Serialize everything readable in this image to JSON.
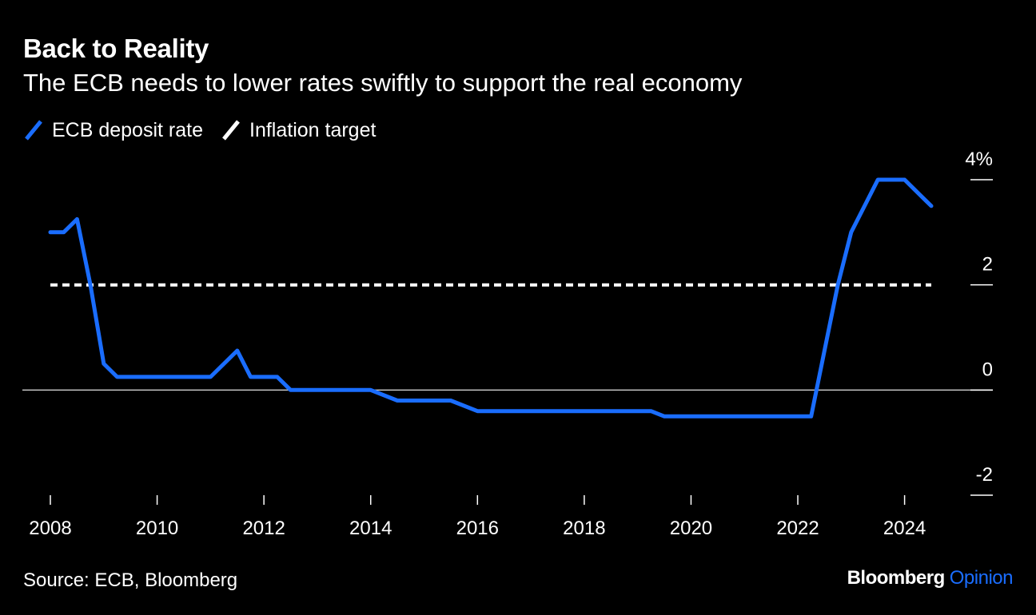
{
  "header": {
    "title": "Back to Reality",
    "subtitle": "The ECB needs to lower rates swiftly to support the real economy"
  },
  "legend": [
    {
      "label": "ECB deposit rate",
      "color": "#1a6dff",
      "icon": "blue-slash-icon"
    },
    {
      "label": "Inflation target",
      "color": "#ffffff",
      "icon": "white-slash-icon"
    }
  ],
  "footer": {
    "source": "Source: ECB, Bloomberg",
    "brand_main": "Bloomberg",
    "brand_sub": "Opinion",
    "brand_sub_color": "#1a6dff"
  },
  "chart_data": {
    "type": "line",
    "x_unit": "year",
    "xlim": [
      2008,
      2024.5
    ],
    "ylim": [
      -2,
      4
    ],
    "x_ticks": [
      2008,
      2010,
      2012,
      2014,
      2016,
      2018,
      2020,
      2022,
      2024
    ],
    "x_tick_labels": [
      "2008",
      "2010",
      "2012",
      "2014",
      "2016",
      "2018",
      "2020",
      "2022",
      "2024"
    ],
    "y_ticks": [
      4,
      2,
      0,
      -2
    ],
    "y_tick_labels": [
      "4%",
      "2",
      "0",
      "-2"
    ],
    "zero_line": true,
    "grid": false,
    "legend_position": "top-left",
    "series": [
      {
        "name": "ECB deposit rate",
        "color": "#1a6dff",
        "style": "solid",
        "x": [
          2008.0,
          2008.25,
          2008.5,
          2008.75,
          2009.0,
          2009.25,
          2009.5,
          2010.0,
          2011.0,
          2011.5,
          2011.75,
          2012.25,
          2012.5,
          2013.0,
          2014.0,
          2014.5,
          2015.0,
          2015.5,
          2016.0,
          2016.5,
          2018.0,
          2019.25,
          2019.5,
          2020.0,
          2021.0,
          2022.25,
          2022.5,
          2022.75,
          2023.0,
          2023.25,
          2023.5,
          2024.0,
          2024.25,
          2024.5
        ],
        "y": [
          3.0,
          3.0,
          3.25,
          2.0,
          0.5,
          0.25,
          0.25,
          0.25,
          0.25,
          0.75,
          0.25,
          0.25,
          0.0,
          0.0,
          0.0,
          -0.2,
          -0.2,
          -0.2,
          -0.4,
          -0.4,
          -0.4,
          -0.4,
          -0.5,
          -0.5,
          -0.5,
          -0.5,
          0.75,
          2.0,
          3.0,
          3.5,
          4.0,
          4.0,
          3.75,
          3.5
        ]
      },
      {
        "name": "Inflation target",
        "color": "#ffffff",
        "style": "dashed",
        "x": [
          2008.0,
          2024.5
        ],
        "y": [
          2.0,
          2.0
        ]
      }
    ]
  }
}
